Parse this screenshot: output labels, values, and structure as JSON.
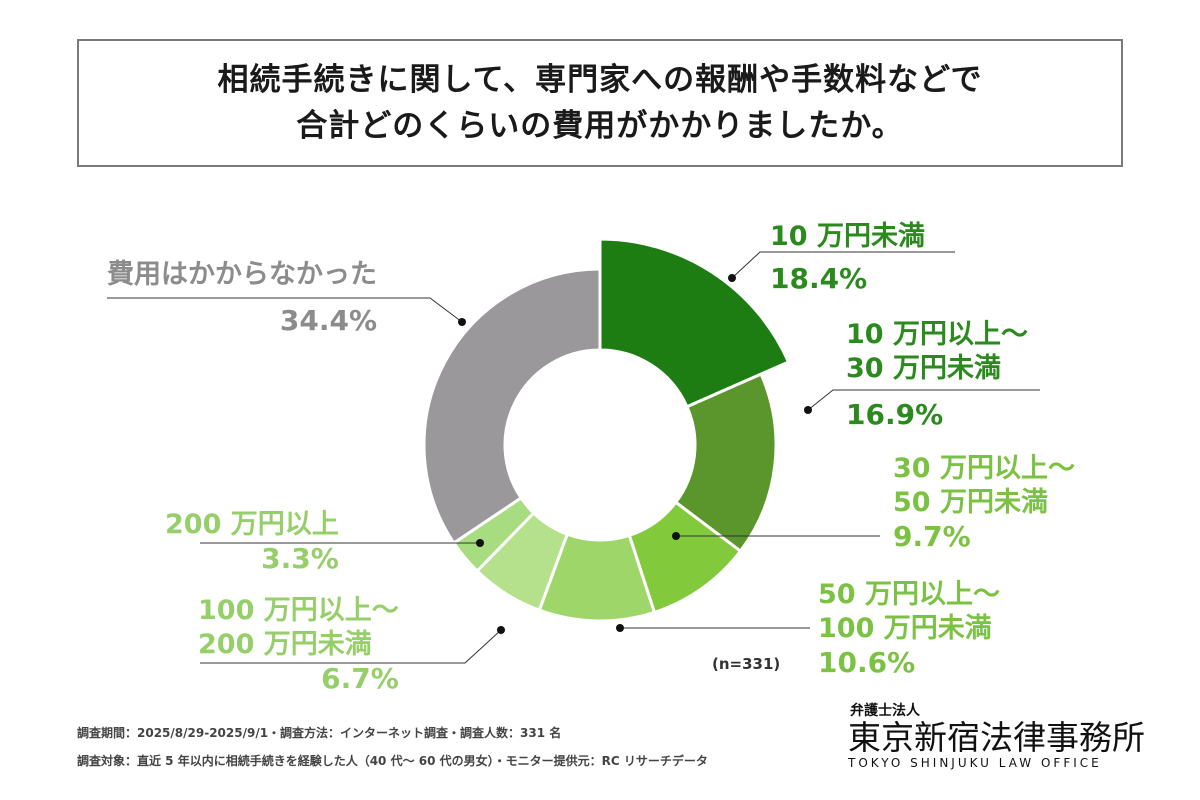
{
  "title": {
    "line1": "相続手続きに関して、専門家への報酬や手数料などで",
    "line2": "合計どのくらいの費用がかかりましたか。"
  },
  "chart_data": {
    "type": "pie",
    "donut": true,
    "start": "top, clockwise",
    "exploded": [
      "10万円未満"
    ],
    "slices": [
      {
        "label": "10 万円未満",
        "value": 18.4,
        "pct": "18.4%",
        "color": "#1e7d12",
        "label_color": "#2a8a1c"
      },
      {
        "label": "10 万円以上～\n30 万円未満",
        "value": 16.9,
        "pct": "16.9%",
        "color": "#5a962c",
        "label_color": "#2a8a1c"
      },
      {
        "label": "30 万円以上～\n50 万円未満",
        "value": 9.7,
        "pct": "9.7%",
        "color": "#82c93c",
        "label_color": "#7cc242"
      },
      {
        "label": "50 万円以上～\n100 万円未満",
        "value": 10.6,
        "pct": "10.6%",
        "color": "#9ed66a",
        "label_color": "#7cc242"
      },
      {
        "label": "100 万円以上～\n200 万円未満",
        "value": 6.7,
        "pct": "6.7%",
        "color": "#b5e08c",
        "label_color": "#96cf6a"
      },
      {
        "label": "200 万円以上",
        "value": 3.3,
        "pct": "3.3%",
        "color": "#a8dc80",
        "label_color": "#96cf6a"
      },
      {
        "label": "費用はかからなかった",
        "value": 34.4,
        "pct": "34.4%",
        "color": "#9a989b",
        "label_color": "#8c8c8c"
      }
    ],
    "n_label": "(n=331)"
  },
  "footer": {
    "line1": "調査期間：2025/8/29-2025/9/1・調査方法：インターネット調査・調査人数：331 名",
    "line2": "調査対象：直近 5 年以内に相続手続きを経験した人（40 代～ 60 代の男女）・モニター提供元：RC リサーチデータ"
  },
  "logo": {
    "small": "弁護士法人",
    "main": "東京新宿法律事務所",
    "english": "TOKYO SHINJUKU LAW OFFICE"
  }
}
